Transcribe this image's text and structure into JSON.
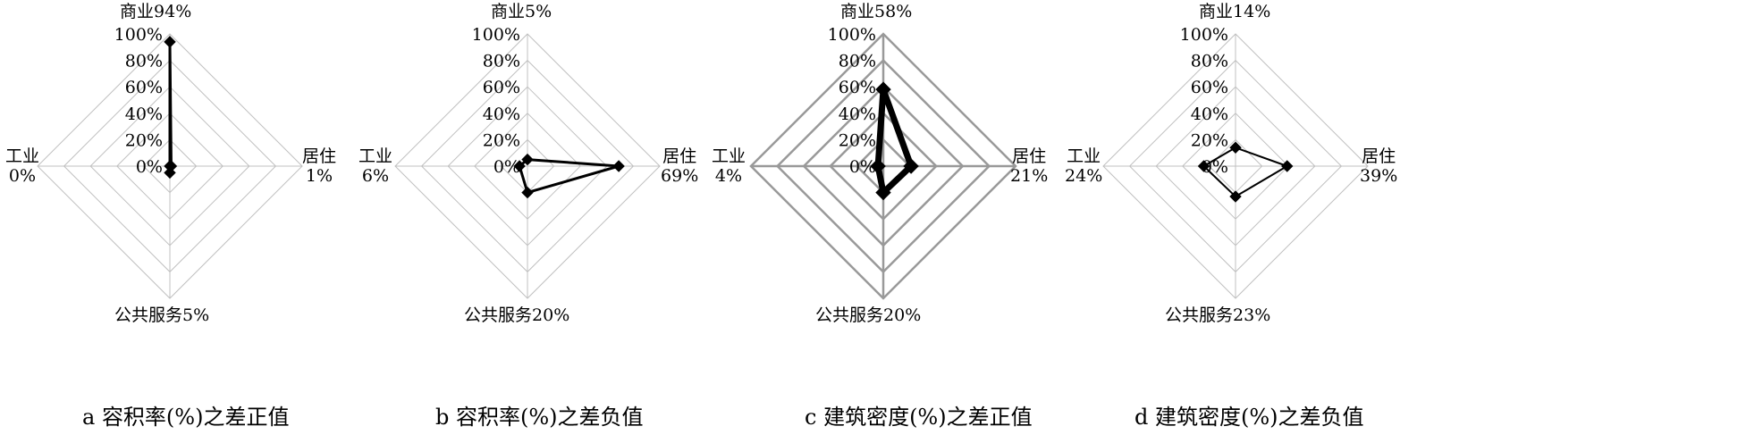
{
  "chart_data": [
    {
      "type": "radar",
      "caption": "a 容积率(%)之差正值",
      "axes": [
        {
          "name": "商业",
          "value": 94
        },
        {
          "name": "居住",
          "value": 1
        },
        {
          "name": "公共服务",
          "value": 5
        },
        {
          "name": "工业",
          "value": 0
        }
      ],
      "rlim": [
        0,
        100
      ],
      "ticks": [
        "0%",
        "20%",
        "40%",
        "60%",
        "80%",
        "100%"
      ],
      "grid_color": "#c0c0c0",
      "line_width": 3
    },
    {
      "type": "radar",
      "caption": "b 容积率(%)之差负值",
      "axes": [
        {
          "name": "商业",
          "value": 5
        },
        {
          "name": "居住",
          "value": 69
        },
        {
          "name": "公共服务",
          "value": 20
        },
        {
          "name": "工业",
          "value": 6
        }
      ],
      "rlim": [
        0,
        100
      ],
      "ticks": [
        "0%",
        "20%",
        "40%",
        "60%",
        "80%",
        "100%"
      ],
      "grid_color": "#c0c0c0",
      "line_width": 3
    },
    {
      "type": "radar",
      "caption": "c 建筑密度(%)之差正值",
      "axes": [
        {
          "name": "商业",
          "value": 58
        },
        {
          "name": "居住",
          "value": 21
        },
        {
          "name": "公共服务",
          "value": 20
        },
        {
          "name": "工业",
          "value": 4
        }
      ],
      "rlim": [
        0,
        100
      ],
      "ticks": [
        "0%",
        "20%",
        "40%",
        "60%",
        "80%",
        "100%"
      ],
      "grid_color": "#999999",
      "line_width": 7
    },
    {
      "type": "radar",
      "caption": "d 建筑密度(%)之差负值",
      "axes": [
        {
          "name": "商业",
          "value": 14
        },
        {
          "name": "居住",
          "value": 39
        },
        {
          "name": "公共服务",
          "value": 23
        },
        {
          "name": "工业",
          "value": 24
        }
      ],
      "rlim": [
        0,
        100
      ],
      "ticks": [
        "0%",
        "20%",
        "40%",
        "60%",
        "80%",
        "100%"
      ],
      "grid_color": "#c0c0c0",
      "line_width": 2
    }
  ]
}
